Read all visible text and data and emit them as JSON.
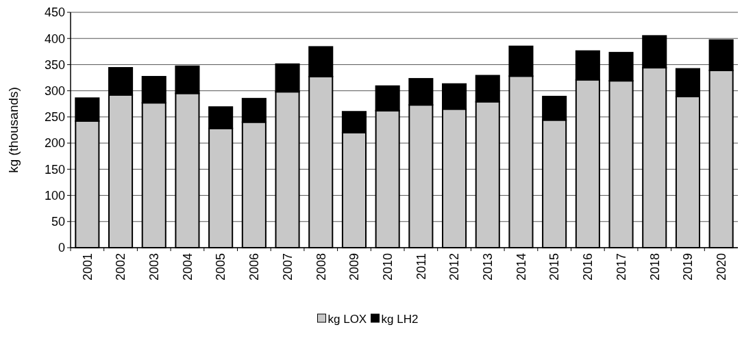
{
  "chart_data": {
    "type": "bar",
    "stacked": true,
    "ylabel": "kg (thousands)",
    "categories": [
      "2001",
      "2002",
      "2003",
      "2004",
      "2005",
      "2006",
      "2007",
      "2008",
      "2009",
      "2010",
      "2011",
      "2012",
      "2013",
      "2014",
      "2015",
      "2016",
      "2017",
      "2018",
      "2019",
      "2020"
    ],
    "series": [
      {
        "name": "kg LOX",
        "color": "#c8c8c8",
        "values": [
          242,
          292,
          277,
          295,
          228,
          240,
          298,
          327,
          220,
          262,
          273,
          265,
          279,
          328,
          244,
          321,
          319,
          344,
          289,
          339
        ]
      },
      {
        "name": "kg LH2",
        "color": "#000000",
        "values": [
          44,
          52,
          50,
          52,
          41,
          45,
          53,
          57,
          40,
          47,
          50,
          48,
          50,
          57,
          45,
          55,
          54,
          61,
          53,
          58
        ]
      }
    ],
    "ylim": [
      0,
      450
    ],
    "yticks": [
      0,
      50,
      100,
      150,
      200,
      250,
      300,
      350,
      400,
      450
    ],
    "grid": "y",
    "legend": "bottom"
  }
}
